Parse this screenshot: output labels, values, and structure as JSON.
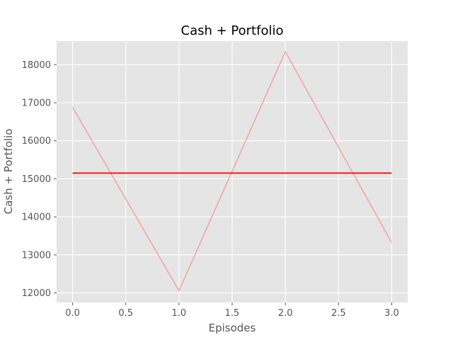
{
  "chart_data": {
    "type": "line",
    "title": "Cash + Portfolio",
    "xlabel": "Episodes",
    "ylabel": "Cash + Portfolio",
    "xlim": [
      -0.15,
      3.15
    ],
    "ylim": [
      11750,
      18620
    ],
    "x_ticks": [
      0.0,
      0.5,
      1.0,
      1.5,
      2.0,
      2.5,
      3.0
    ],
    "x_tick_labels": [
      "0.0",
      "0.5",
      "1.0",
      "1.5",
      "2.0",
      "2.5",
      "3.0"
    ],
    "y_ticks": [
      12000,
      13000,
      14000,
      15000,
      16000,
      17000,
      18000
    ],
    "y_tick_labels": [
      "12000",
      "13000",
      "14000",
      "15000",
      "16000",
      "17000",
      "18000"
    ],
    "grid": true,
    "series": [
      {
        "x": [
          0,
          1,
          2,
          3
        ],
        "values": [
          16880,
          12060,
          18340,
          13320
        ],
        "color": "#f4a6a3"
      },
      {
        "x": [
          0,
          3
        ],
        "values": [
          15150,
          15150
        ],
        "color": "#ff0000"
      }
    ],
    "style": {
      "plot_background": "#e5e5e5",
      "grid_color": "#ffffff"
    }
  }
}
